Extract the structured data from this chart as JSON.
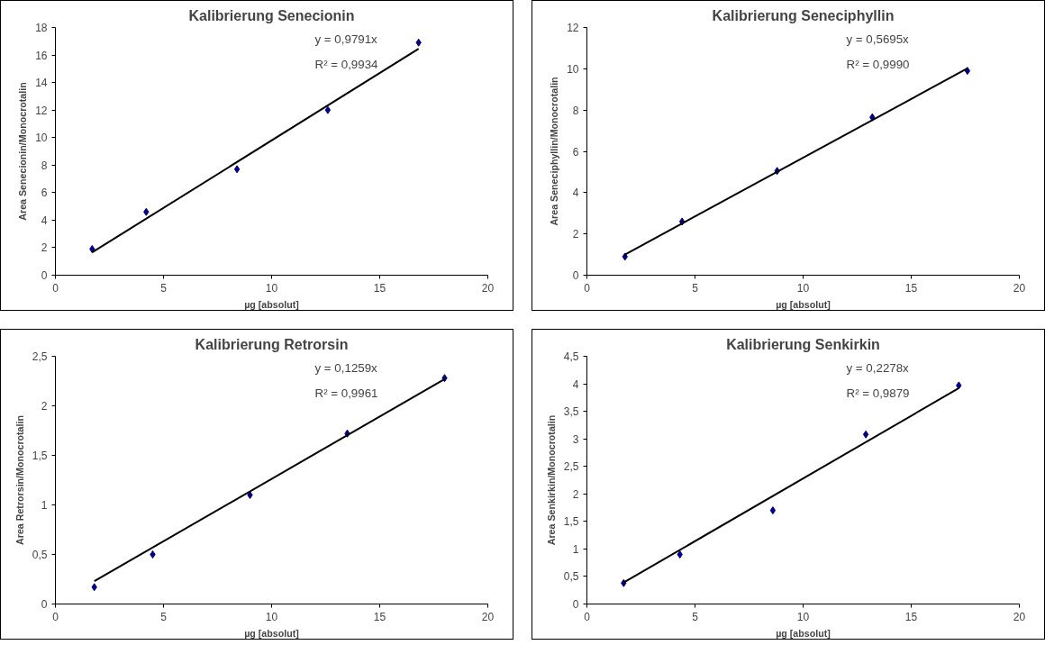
{
  "chart_data": [
    {
      "type": "scatter",
      "title": "Kalibrierung Senecionin",
      "xlabel": "µg [absolut]",
      "ylabel": "Area Senecionin/Monocrotalin",
      "annotations": [
        "y = 0,9791x",
        "R² = 0,9934"
      ],
      "xlim": [
        0,
        20
      ],
      "xticks": [
        0,
        5,
        10,
        15,
        20
      ],
      "ylim": [
        0,
        18
      ],
      "yticks": [
        0,
        2,
        4,
        6,
        8,
        10,
        12,
        14,
        16,
        18
      ],
      "marker": "diamond",
      "grid": false,
      "series": [
        {
          "color": "#000080",
          "x": [
            1.7,
            4.2,
            8.4,
            12.6,
            16.8
          ],
          "values": [
            1.9,
            4.6,
            7.7,
            12.0,
            16.9
          ]
        },
        {
          "type": "line",
          "marker": "none",
          "color": "#000000",
          "x": [
            1.7,
            16.8
          ],
          "values": [
            1.66,
            16.45
          ]
        }
      ]
    },
    {
      "type": "scatter",
      "title": "Kalibrierung Seneciphyllin",
      "xlabel": "µg [absolut]",
      "ylabel": "Area Seneciphyllin/Monocrotalin",
      "annotations": [
        "y = 0,5695x",
        "R² = 0,9990"
      ],
      "xlim": [
        0,
        20
      ],
      "xticks": [
        0,
        5,
        10,
        15,
        20
      ],
      "ylim": [
        0,
        12
      ],
      "yticks": [
        0,
        2,
        4,
        6,
        8,
        10,
        12
      ],
      "marker": "diamond",
      "grid": false,
      "series": [
        {
          "color": "#000080",
          "x": [
            1.76,
            4.4,
            8.8,
            13.2,
            17.6
          ],
          "values": [
            0.9,
            2.6,
            5.05,
            7.65,
            9.9
          ]
        },
        {
          "type": "line",
          "marker": "none",
          "color": "#000000",
          "x": [
            1.76,
            17.6
          ],
          "values": [
            1.0,
            10.02
          ]
        }
      ]
    },
    {
      "type": "scatter",
      "title": "Kalibrierung Retrorsin",
      "xlabel": "µg [absolut]",
      "ylabel": "Area Retrorsin/Monocrotalin",
      "annotations": [
        "y = 0,1259x",
        "R² = 0,9961"
      ],
      "xlim": [
        0,
        20
      ],
      "xticks": [
        0,
        5,
        10,
        15,
        20
      ],
      "ylim": [
        0,
        2.5
      ],
      "yticks": [
        0,
        {
          "value": 0.5,
          "label": "0,5"
        },
        1,
        {
          "value": 1.5,
          "label": "1,5"
        },
        2,
        {
          "value": 2.5,
          "label": "2,5"
        }
      ],
      "marker": "diamond",
      "grid": false,
      "series": [
        {
          "color": "#000080",
          "x": [
            1.8,
            4.5,
            9.0,
            13.5,
            18.0
          ],
          "values": [
            0.17,
            0.5,
            1.1,
            1.72,
            2.28
          ]
        },
        {
          "type": "line",
          "marker": "none",
          "color": "#000000",
          "x": [
            1.8,
            18.0
          ],
          "values": [
            0.23,
            2.27
          ]
        }
      ]
    },
    {
      "type": "scatter",
      "title": "Kalibrierung Senkirkin",
      "xlabel": "µg [absolut]",
      "ylabel": "Area Senkirkin/Monocrotalin",
      "annotations": [
        "y = 0,2278x",
        "R² = 0,9879"
      ],
      "xlim": [
        0,
        20
      ],
      "xticks": [
        0,
        5,
        10,
        15,
        20
      ],
      "ylim": [
        0,
        4.5
      ],
      "yticks": [
        0,
        {
          "value": 0.5,
          "label": "0,5"
        },
        1,
        {
          "value": 1.5,
          "label": "1,5"
        },
        2,
        {
          "value": 2.5,
          "label": "2,5"
        },
        3,
        {
          "value": 3.5,
          "label": "3,5"
        },
        4,
        {
          "value": 4.5,
          "label": "4,5"
        }
      ],
      "marker": "diamond",
      "grid": false,
      "series": [
        {
          "color": "#000080",
          "x": [
            1.7,
            4.3,
            8.6,
            12.9,
            17.2
          ],
          "values": [
            0.38,
            0.9,
            1.7,
            3.08,
            3.97
          ]
        },
        {
          "type": "line",
          "marker": "none",
          "color": "#000000",
          "x": [
            1.7,
            17.2
          ],
          "values": [
            0.39,
            3.92
          ]
        }
      ]
    }
  ]
}
